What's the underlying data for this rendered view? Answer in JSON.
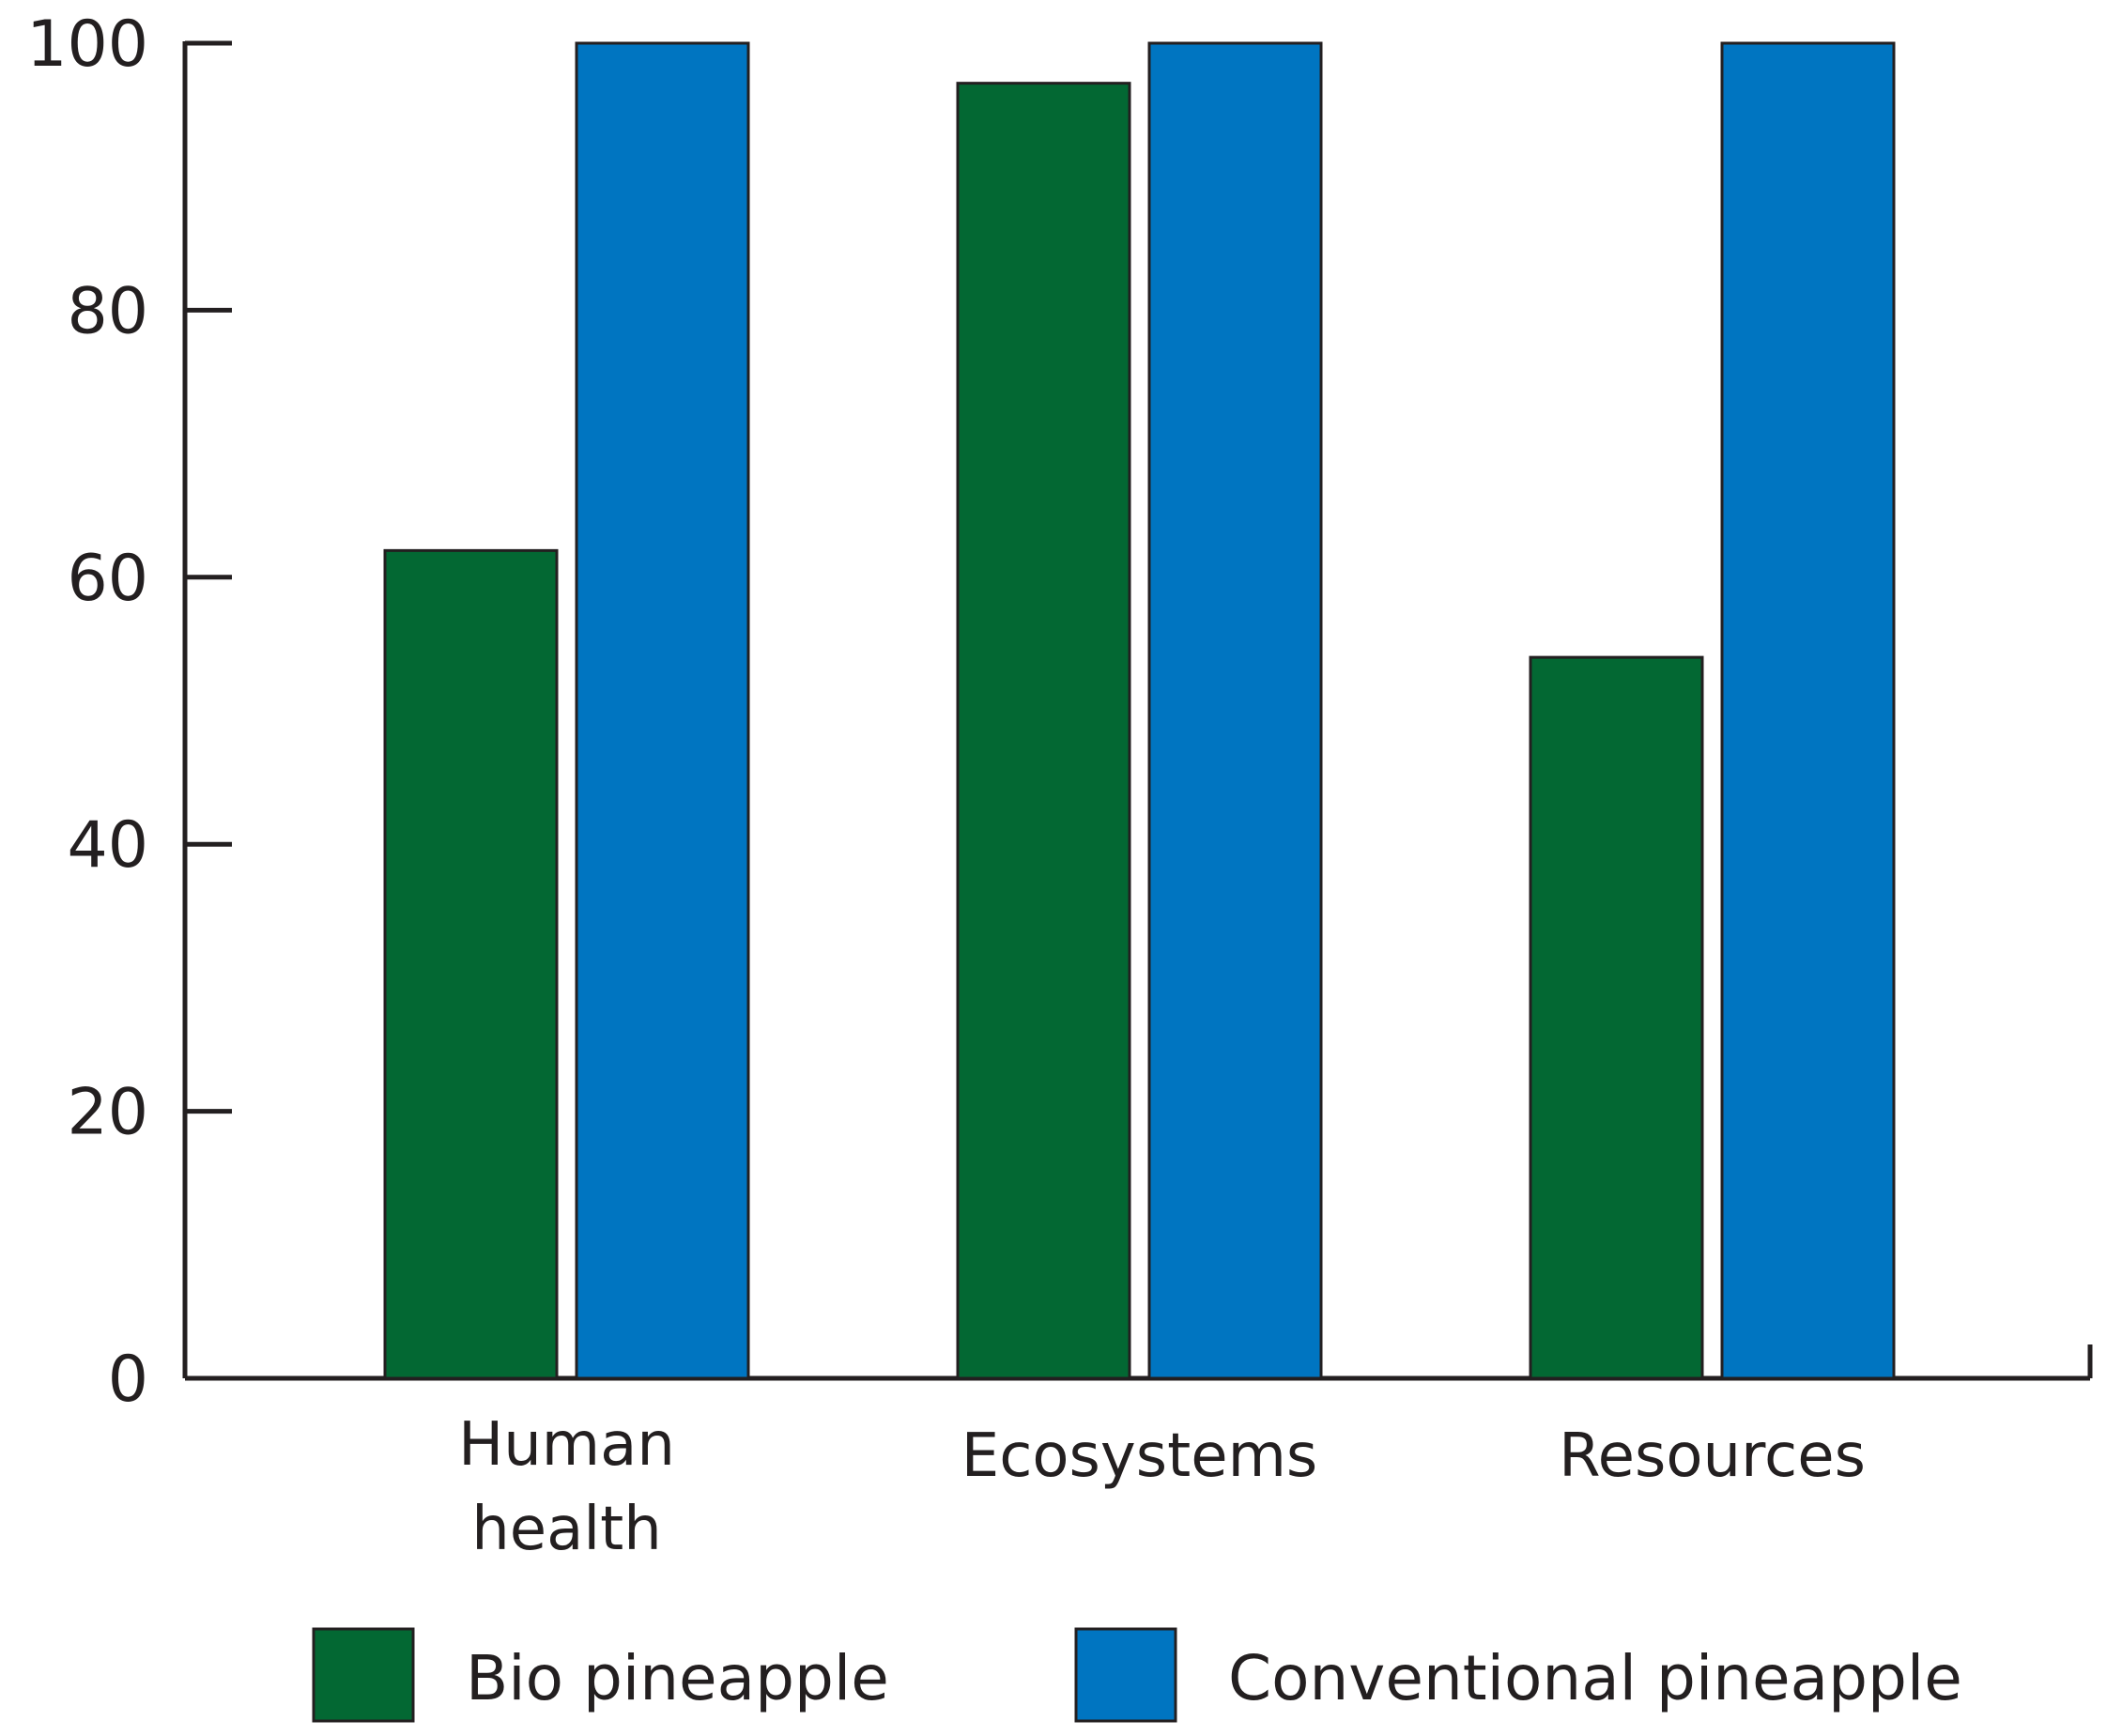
{
  "chart_data": {
    "type": "bar",
    "title": "",
    "xlabel": "",
    "ylabel": "",
    "ylim": [
      0,
      100
    ],
    "yticks": [
      "0",
      "20",
      "40",
      "60",
      "80",
      "100"
    ],
    "categories": [
      [
        "Human",
        "health"
      ],
      [
        "Ecosystems"
      ],
      [
        "Resources"
      ]
    ],
    "series": [
      {
        "name": "Bio pineapple",
        "color": "#036833",
        "values": [
          62,
          97,
          54
        ]
      },
      {
        "name": "Conventional pineapple",
        "color": "#0075c1",
        "values": [
          100,
          100,
          100
        ]
      }
    ],
    "grid": false,
    "legend_position": "bottom"
  }
}
